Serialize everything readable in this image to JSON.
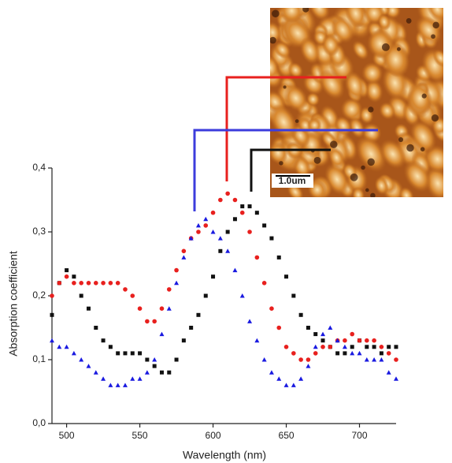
{
  "chart_data": {
    "type": "scatter",
    "x_label": "Wavelength (nm)",
    "y_label": "Absorption coefficient",
    "annotation": "1.0um",
    "x": [
      490,
      495,
      500,
      505,
      510,
      515,
      520,
      525,
      530,
      535,
      540,
      545,
      550,
      555,
      560,
      565,
      570,
      575,
      580,
      585,
      590,
      595,
      600,
      605,
      610,
      615,
      620,
      625,
      630,
      635,
      640,
      645,
      650,
      655,
      660,
      665,
      670,
      675,
      680,
      685,
      690,
      695,
      700,
      705,
      710,
      715,
      720,
      725
    ],
    "series": [
      {
        "name": "black",
        "color": "#111111",
        "marker": "square",
        "values": [
          0.17,
          0.22,
          0.24,
          0.23,
          0.2,
          0.18,
          0.15,
          0.13,
          0.12,
          0.11,
          0.11,
          0.11,
          0.11,
          0.1,
          0.09,
          0.08,
          0.08,
          0.1,
          0.13,
          0.15,
          0.17,
          0.2,
          0.23,
          0.27,
          0.3,
          0.32,
          0.34,
          0.34,
          0.33,
          0.31,
          0.29,
          0.26,
          0.23,
          0.2,
          0.17,
          0.15,
          0.14,
          0.13,
          0.12,
          0.11,
          0.11,
          0.12,
          0.13,
          0.12,
          0.12,
          0.11,
          0.12,
          0.12
        ]
      },
      {
        "name": "red",
        "color": "#e8201e",
        "marker": "circle",
        "values": [
          0.2,
          0.22,
          0.23,
          0.22,
          0.22,
          0.22,
          0.22,
          0.22,
          0.22,
          0.22,
          0.21,
          0.2,
          0.18,
          0.16,
          0.16,
          0.18,
          0.21,
          0.24,
          0.27,
          0.29,
          0.3,
          0.31,
          0.33,
          0.35,
          0.36,
          0.35,
          0.33,
          0.3,
          0.26,
          0.22,
          0.18,
          0.15,
          0.12,
          0.11,
          0.1,
          0.1,
          0.11,
          0.12,
          0.12,
          0.13,
          0.13,
          0.14,
          0.13,
          0.13,
          0.13,
          0.12,
          0.11,
          0.1
        ]
      },
      {
        "name": "blue",
        "color": "#1a1ae0",
        "marker": "triangle",
        "values": [
          0.13,
          0.12,
          0.12,
          0.11,
          0.1,
          0.09,
          0.08,
          0.07,
          0.06,
          0.06,
          0.06,
          0.07,
          0.07,
          0.08,
          0.1,
          0.14,
          0.18,
          0.22,
          0.26,
          0.29,
          0.31,
          0.32,
          0.3,
          0.29,
          0.27,
          0.24,
          0.2,
          0.16,
          0.13,
          0.1,
          0.08,
          0.07,
          0.06,
          0.06,
          0.07,
          0.09,
          0.12,
          0.14,
          0.15,
          0.13,
          0.12,
          0.11,
          0.11,
          0.1,
          0.1,
          0.1,
          0.08,
          0.07
        ]
      }
    ],
    "xlim": [
      490,
      725
    ],
    "xticks": [
      500,
      550,
      600,
      650,
      700
    ],
    "ylim": [
      0,
      0.4
    ],
    "yticks": [
      {
        "value": 0,
        "label": "0,0"
      },
      {
        "value": 0.1,
        "label": "0,1"
      },
      {
        "value": 0.2,
        "label": "0,2"
      },
      {
        "value": 0.3,
        "label": "0,3"
      },
      {
        "value": 0.4,
        "label": "0,4"
      }
    ]
  }
}
